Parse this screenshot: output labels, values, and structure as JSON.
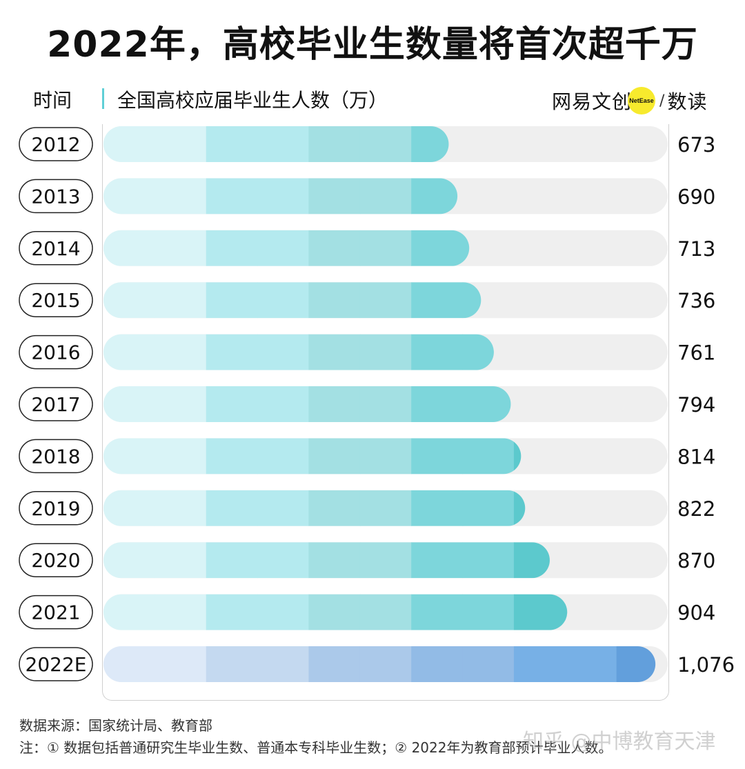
{
  "chart_data": {
    "type": "bar",
    "orientation": "horizontal",
    "title": "2022年，高校毕业生数量将首次超千万",
    "category_label": "时间",
    "value_label": "全国高校应届毕业生人数（万）",
    "categories": [
      "2012",
      "2013",
      "2014",
      "2015",
      "2016",
      "2017",
      "2018",
      "2019",
      "2020",
      "2021",
      "2022E"
    ],
    "values": [
      673,
      690,
      713,
      736,
      761,
      794,
      814,
      822,
      870,
      904,
      1076
    ],
    "value_labels": [
      "673",
      "690",
      "713",
      "736",
      "761",
      "794",
      "814",
      "822",
      "870",
      "904",
      "1,076"
    ],
    "xlim": [
      0,
      1100
    ],
    "band_step": 100,
    "colors": {
      "track": "#efefef",
      "actual_bands": [
        "#d9f4f7",
        "#d9f4f7",
        "#b4eaef",
        "#b4eaef",
        "#a3e0e3",
        "#a3e0e3",
        "#7dd6db",
        "#7dd6db",
        "#5cc9cd",
        "#5cc9cd",
        "#5cc9cd"
      ],
      "estimate_bands": [
        "#dde9f8",
        "#dde9f8",
        "#c4d9f0",
        "#c4d9f0",
        "#abc9ea",
        "#abc9ea",
        "#92bbe6",
        "#92bbe6",
        "#77b0e6",
        "#77b0e6",
        "#629fdc"
      ]
    }
  },
  "brand": {
    "main": "网易文创",
    "badge": "NetEase",
    "slash": "/",
    "sub": "数读"
  },
  "source": "数据来源：国家统计局、教育部",
  "note": "注：① 数据包括普通研究生毕业生数、普通本专科毕业生数；② 2022年为教育部预计毕业人数。",
  "watermark": "知乎 @中博教育天津"
}
